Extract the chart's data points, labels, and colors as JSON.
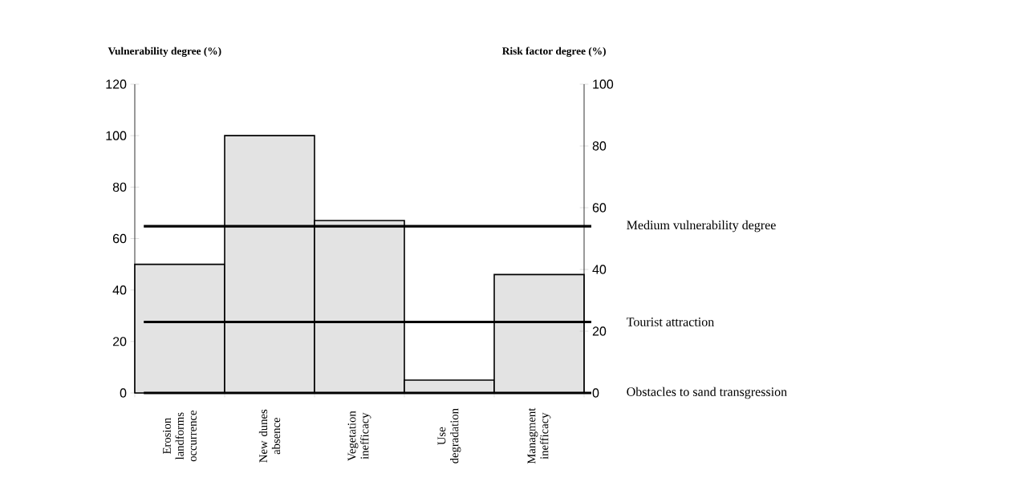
{
  "chart_data": {
    "type": "bar",
    "ylabel": "Vulnerability degree (%)",
    "y2label": "Risk factor degree (%)",
    "categories": [
      "Erosion landforms occurrence",
      "New dunes absence",
      "Vegetation inefficacy",
      "Use degradation",
      "Managment inefficacy"
    ],
    "values": [
      50,
      100,
      67,
      5,
      46
    ],
    "color": "#e3e3e3",
    "ylim": [
      0,
      120
    ],
    "yticks": [
      0,
      20,
      40,
      60,
      80,
      100,
      120
    ],
    "y2lim": [
      0,
      100
    ],
    "y2ticks": [
      0,
      20,
      40,
      60,
      80,
      100
    ],
    "ref_lines": [
      {
        "axis": "y2",
        "value": 54,
        "label": "Medium vulnerability degree"
      },
      {
        "axis": "y2",
        "value": 23,
        "label": "Tourist attraction"
      },
      {
        "axis": "y2",
        "value": 0,
        "label": "Obstacles to sand transgression"
      }
    ]
  }
}
